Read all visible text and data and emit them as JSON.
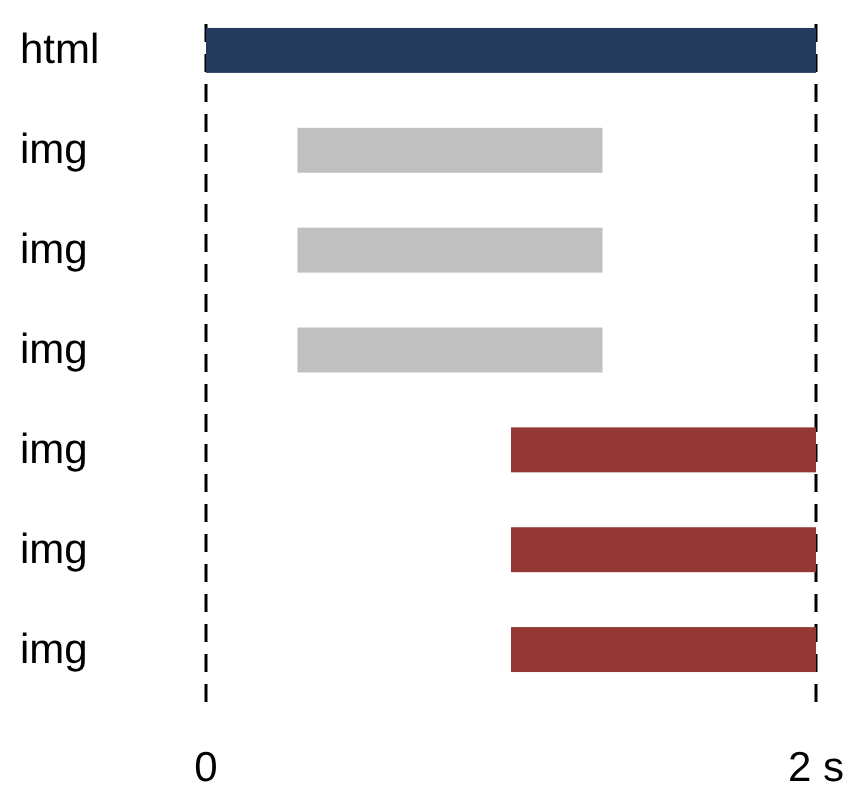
{
  "chart_data": {
    "type": "bar",
    "orientation": "horizontal",
    "categories": [
      "html",
      "img",
      "img",
      "img",
      "img",
      "img",
      "img"
    ],
    "values": [
      2,
      1,
      1,
      1,
      1,
      1,
      1
    ],
    "base": [
      0,
      0.3,
      0.3,
      0.3,
      1,
      1,
      1
    ],
    "colors": [
      "#233b5d",
      "#c0c0c0",
      "#c0c0c0",
      "#c0c0c0",
      "#953735",
      "#953735",
      "#953735"
    ],
    "xlim": [
      0,
      2
    ],
    "xticks": [
      0,
      {
        "value": 2,
        "label": "2 s"
      }
    ],
    "grid": "x"
  }
}
